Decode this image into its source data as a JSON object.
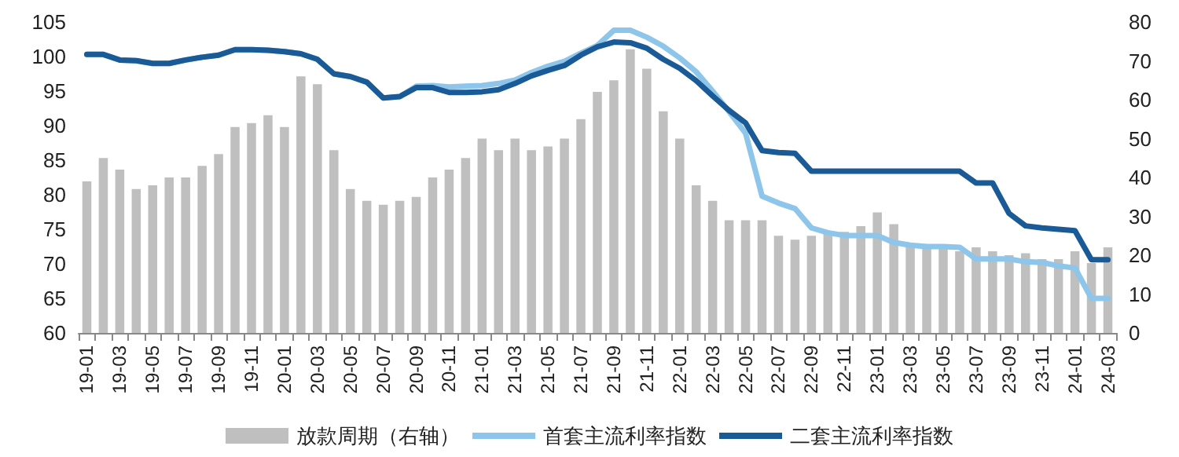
{
  "chart_data": {
    "type": "line",
    "categories": [
      "19-01",
      null,
      "19-03",
      null,
      "19-05",
      null,
      "19-07",
      null,
      "19-09",
      null,
      "19-11",
      null,
      "20-01",
      null,
      "20-03",
      null,
      "20-05",
      null,
      "20-07",
      null,
      "20-09",
      null,
      "20-11",
      null,
      "21-01",
      null,
      "21-03",
      null,
      "21-05",
      null,
      "21-07",
      null,
      "21-09",
      null,
      "21-11",
      null,
      "22-01",
      null,
      "22-03",
      null,
      "22-05",
      null,
      "22-07",
      null,
      "22-09",
      null,
      "22-11",
      null,
      "23-01",
      null,
      "23-03",
      null,
      "23-05",
      null,
      "23-07",
      null,
      "23-09",
      null,
      "23-11",
      null,
      "24-01",
      null,
      "24-03"
    ],
    "series": [
      {
        "name": "放款周期（右轴）",
        "type": "bar",
        "axis": "y2",
        "color": "#bfbfbf",
        "values": [
          39,
          45,
          42,
          37,
          38,
          40,
          40,
          43,
          46,
          53,
          54,
          56,
          53,
          66,
          64,
          47,
          37,
          34,
          33,
          34,
          35,
          40,
          42,
          45,
          50,
          47,
          50,
          47,
          48,
          50,
          55,
          62,
          65,
          73,
          68,
          57,
          50,
          38,
          34,
          29,
          29,
          29,
          25,
          24,
          25,
          25.5,
          26,
          27.5,
          31,
          28,
          23,
          22,
          22,
          21,
          22,
          21,
          20,
          20.5,
          19,
          19,
          21,
          18,
          22
        ]
      },
      {
        "name": "首套主流利率指数",
        "color": "#8ec5ea",
        "values": [
          100.3,
          100.3,
          99.5,
          99.4,
          99,
          99,
          99.5,
          99.9,
          100.2,
          101,
          101,
          100.9,
          100.7,
          100.4,
          99.6,
          97.5,
          97.1,
          96.3,
          94,
          94.2,
          95.7,
          95.8,
          95.6,
          95.7,
          95.8,
          96.1,
          96.6,
          97.7,
          98.6,
          99.3,
          100.5,
          101.6,
          103.8,
          103.8,
          102.8,
          101.5,
          99.8,
          97.8,
          95,
          92,
          88.9,
          79.8,
          78.8,
          78,
          75.2,
          74.5,
          74.1,
          74.1,
          74.1,
          73.1,
          72.7,
          72.5,
          72.5,
          72.4,
          70.7,
          70.7,
          70.7,
          70.3,
          70.2,
          69.7,
          69.4,
          65,
          65
        ]
      },
      {
        "name": "二套主流利率指数",
        "color": "#1a5a96",
        "values": [
          100.3,
          100.3,
          99.5,
          99.4,
          99,
          99,
          99.5,
          99.9,
          100.2,
          101,
          101,
          100.9,
          100.7,
          100.4,
          99.6,
          97.5,
          97.1,
          96.3,
          94,
          94.2,
          95.5,
          95.5,
          94.8,
          94.8,
          94.9,
          95.2,
          96.1,
          97.2,
          98,
          98.7,
          100.2,
          101.4,
          102.1,
          102,
          101.2,
          99.6,
          98.3,
          96.5,
          94.3,
          92.2,
          90.4,
          86.4,
          86.1,
          86,
          83.4,
          83.4,
          83.4,
          83.4,
          83.4,
          83.4,
          83.4,
          83.4,
          83.4,
          83.4,
          81.7,
          81.7,
          77.3,
          75.5,
          75.2,
          75,
          74.8,
          70.6,
          70.6
        ]
      }
    ],
    "ylim": [
      60,
      105
    ],
    "yticks": [
      60,
      65,
      70,
      75,
      80,
      85,
      90,
      95,
      100,
      105
    ],
    "y2lim": [
      0,
      80
    ],
    "y2ticks": [
      0,
      10,
      20,
      30,
      40,
      50,
      60,
      70,
      80
    ],
    "legend": "bottom",
    "marker": "none",
    "grid": false
  }
}
